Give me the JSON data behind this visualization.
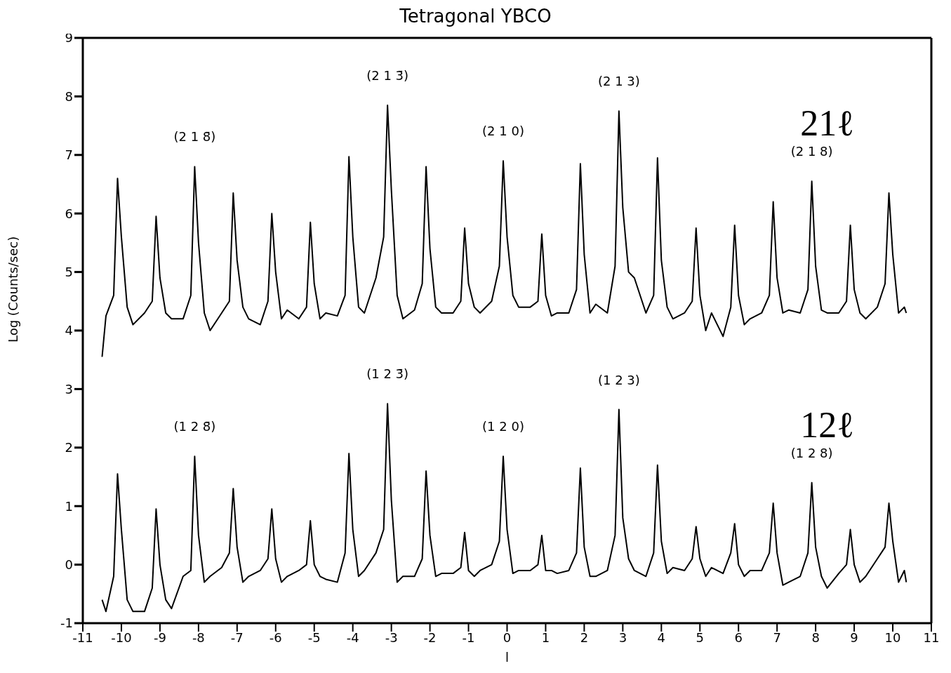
{
  "chart_data": {
    "type": "line",
    "title": "Tetragonal YBCO",
    "xlabel": "l",
    "ylabel": "Log (Counts/sec)",
    "xlim": [
      -11,
      11
    ],
    "ylim": [
      -1,
      9
    ],
    "xticks": [
      -11,
      -10,
      -9,
      -8,
      -7,
      -6,
      -5,
      -4,
      -3,
      -2,
      -1,
      0,
      1,
      2,
      3,
      4,
      5,
      6,
      7,
      8,
      9,
      10,
      11
    ],
    "yticks": [
      -1,
      0,
      1,
      2,
      3,
      4,
      5,
      6,
      7,
      8,
      9
    ],
    "x": [
      -10.5,
      -10.4,
      -10.2,
      -10.1,
      -10,
      -9.85,
      -9.7,
      -9.4,
      -9.2,
      -9.1,
      -9,
      -8.85,
      -8.7,
      -8.4,
      -8.2,
      -8.1,
      -8,
      -7.85,
      -7.7,
      -7.4,
      -7.2,
      -7.1,
      -7,
      -6.85,
      -6.7,
      -6.4,
      -6.2,
      -6.1,
      -6,
      -5.85,
      -5.7,
      -5.4,
      -5.2,
      -5.1,
      -5,
      -4.85,
      -4.7,
      -4.4,
      -4.2,
      -4.1,
      -4,
      -3.85,
      -3.7,
      -3.4,
      -3.2,
      -3.1,
      -3,
      -2.85,
      -2.7,
      -2.4,
      -2.2,
      -2.1,
      -2,
      -1.85,
      -1.7,
      -1.4,
      -1.2,
      -1.1,
      -1,
      -0.85,
      -0.7,
      -0.4,
      -0.2,
      -0.1,
      0,
      0.15,
      0.3,
      0.6,
      0.8,
      0.9,
      1,
      1.15,
      1.3,
      1.6,
      1.8,
      1.9,
      2,
      2.15,
      2.3,
      2.6,
      2.8,
      2.9,
      3,
      3.15,
      3.3,
      3.6,
      3.8,
      3.9,
      4,
      4.15,
      4.3,
      4.6,
      4.8,
      4.9,
      5,
      5.15,
      5.3,
      5.6,
      5.8,
      5.9,
      6,
      6.15,
      6.3,
      6.6,
      6.8,
      6.9,
      7,
      7.15,
      7.3,
      7.6,
      7.8,
      7.9,
      8,
      8.15,
      8.3,
      8.6,
      8.8,
      8.9,
      9,
      9.15,
      9.3,
      9.6,
      9.8,
      9.9,
      10,
      10.15,
      10.3,
      10.35
    ],
    "series": [
      {
        "name": "21ℓ",
        "color": "#000000",
        "values": [
          3.55,
          4.25,
          4.6,
          6.6,
          5.6,
          4.4,
          4.1,
          4.3,
          4.5,
          5.95,
          4.9,
          4.3,
          4.2,
          4.2,
          4.6,
          6.8,
          5.5,
          4.3,
          4.0,
          4.3,
          4.5,
          6.35,
          5.2,
          4.4,
          4.2,
          4.1,
          4.5,
          6.0,
          5.0,
          4.2,
          4.35,
          4.2,
          4.4,
          5.85,
          4.8,
          4.2,
          4.3,
          4.25,
          4.6,
          6.97,
          5.6,
          4.4,
          4.3,
          4.9,
          5.6,
          7.85,
          6.4,
          4.6,
          4.2,
          4.35,
          4.8,
          6.8,
          5.4,
          4.4,
          4.3,
          4.3,
          4.5,
          5.75,
          4.8,
          4.4,
          4.3,
          4.5,
          5.1,
          6.9,
          5.6,
          4.6,
          4.4,
          4.4,
          4.5,
          5.65,
          4.6,
          4.25,
          4.3,
          4.3,
          4.7,
          6.85,
          5.3,
          4.3,
          4.45,
          4.3,
          5.1,
          7.75,
          6.1,
          5.0,
          4.9,
          4.3,
          4.6,
          6.95,
          5.2,
          4.4,
          4.2,
          4.3,
          4.5,
          5.75,
          4.6,
          4.0,
          4.3,
          3.9,
          4.4,
          5.8,
          4.6,
          4.1,
          4.2,
          4.3,
          4.6,
          6.2,
          4.9,
          4.3,
          4.35,
          4.3,
          4.7,
          6.55,
          5.1,
          4.35,
          4.3,
          4.3,
          4.5,
          5.8,
          4.7,
          4.3,
          4.2,
          4.4,
          4.8,
          6.35,
          5.3,
          4.3,
          4.4,
          4.3
        ]
      },
      {
        "name": "12ℓ",
        "color": "#000000",
        "values": [
          -0.6,
          -0.8,
          -0.2,
          1.55,
          0.6,
          -0.6,
          -0.8,
          -0.8,
          -0.4,
          0.95,
          0.0,
          -0.6,
          -0.75,
          -0.2,
          -0.1,
          1.85,
          0.5,
          -0.3,
          -0.2,
          -0.05,
          0.2,
          1.3,
          0.3,
          -0.3,
          -0.2,
          -0.1,
          0.1,
          0.95,
          0.1,
          -0.3,
          -0.2,
          -0.1,
          0.0,
          0.75,
          0.0,
          -0.2,
          -0.25,
          -0.3,
          0.2,
          1.9,
          0.6,
          -0.2,
          -0.1,
          0.2,
          0.6,
          2.75,
          1.1,
          -0.3,
          -0.2,
          -0.2,
          0.1,
          1.6,
          0.5,
          -0.2,
          -0.15,
          -0.15,
          -0.05,
          0.55,
          -0.1,
          -0.2,
          -0.1,
          0.0,
          0.4,
          1.85,
          0.6,
          -0.15,
          -0.1,
          -0.1,
          0.0,
          0.5,
          -0.1,
          -0.1,
          -0.15,
          -0.1,
          0.2,
          1.65,
          0.3,
          -0.2,
          -0.2,
          -0.1,
          0.5,
          2.65,
          0.8,
          0.1,
          -0.1,
          -0.2,
          0.2,
          1.7,
          0.4,
          -0.15,
          -0.05,
          -0.1,
          0.1,
          0.65,
          0.1,
          -0.2,
          -0.05,
          -0.15,
          0.2,
          0.7,
          0.0,
          -0.2,
          -0.1,
          -0.1,
          0.2,
          1.05,
          0.2,
          -0.35,
          -0.3,
          -0.2,
          0.2,
          1.4,
          0.3,
          -0.2,
          -0.4,
          -0.15,
          0.0,
          0.6,
          0.0,
          -0.3,
          -0.2,
          0.1,
          0.3,
          1.05,
          0.4,
          -0.3,
          -0.1,
          -0.3
        ]
      }
    ],
    "annotations": [
      {
        "text": "(2 1 8̄)",
        "x": -8.1,
        "y": 6.8
      },
      {
        "text": "(2 1 3̄)",
        "x": -3.1,
        "y": 7.85
      },
      {
        "text": "(2 1 0)",
        "x": -0.1,
        "y": 6.9
      },
      {
        "text": "(2 1 3)",
        "x": 2.9,
        "y": 7.75
      },
      {
        "text": "(2 1 8)",
        "x": 7.9,
        "y": 6.55
      },
      {
        "text": "(1 2 8̄)",
        "x": -8.1,
        "y": 1.85
      },
      {
        "text": "(1 2 3̄)",
        "x": -3.1,
        "y": 2.75
      },
      {
        "text": "(1 2 0)",
        "x": -0.1,
        "y": 1.85
      },
      {
        "text": "(1 2 3)",
        "x": 2.9,
        "y": 2.65
      },
      {
        "text": "(1 2 8)",
        "x": 7.9,
        "y": 1.4
      }
    ]
  }
}
